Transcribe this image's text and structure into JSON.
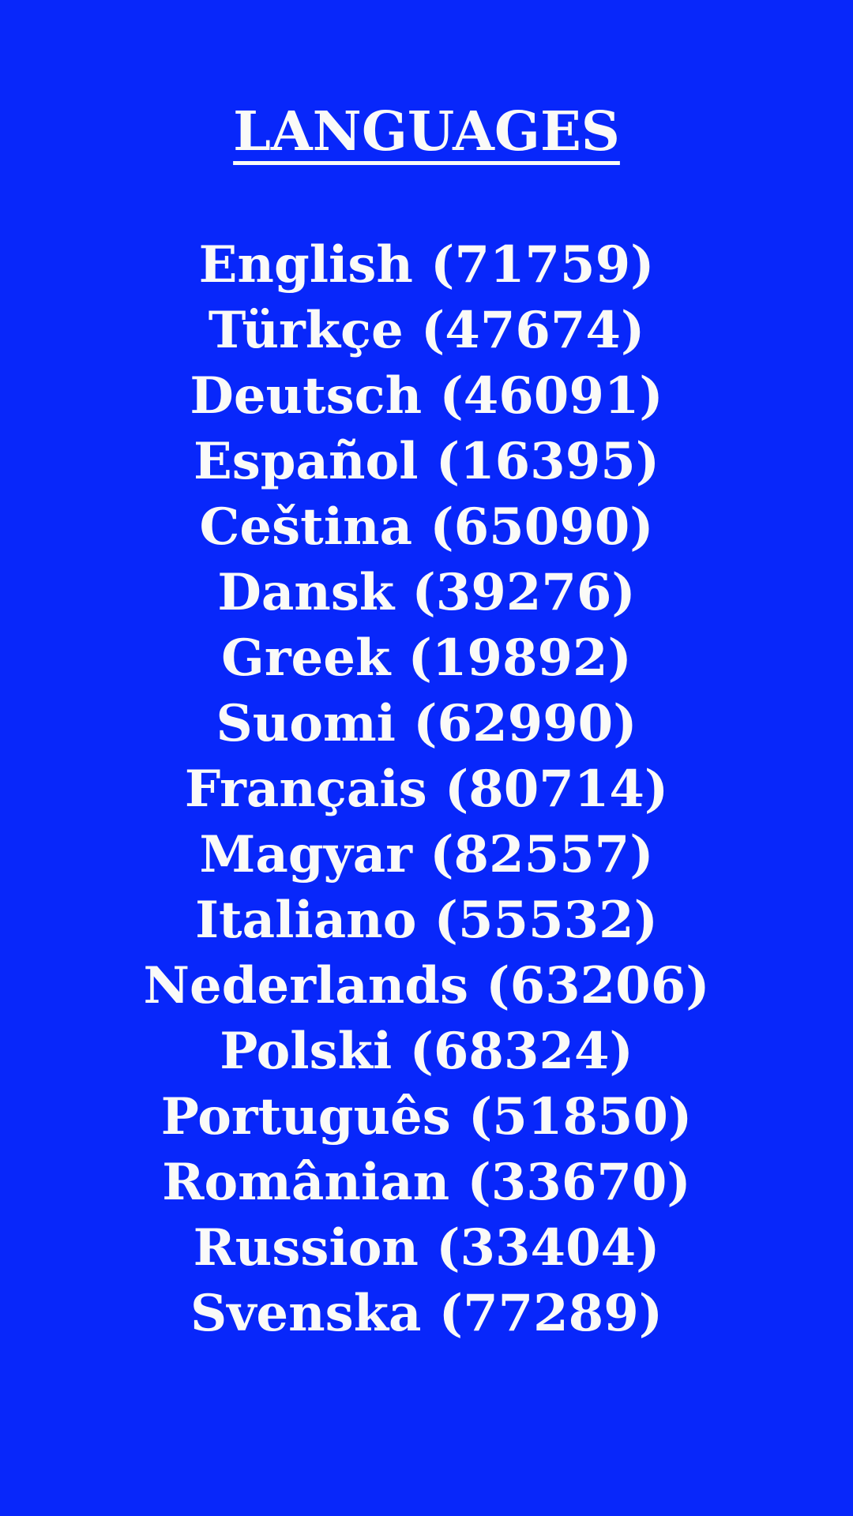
{
  "page": {
    "background_color": "#0827fa",
    "text_color": "#fafaf8"
  },
  "header": {
    "title": "LANGUAGES"
  },
  "languages": {
    "items": [
      {
        "name": "English",
        "count": "71759",
        "label": "English (71759)"
      },
      {
        "name": "Türkçe",
        "count": "47674",
        "label": "Türkçe (47674)"
      },
      {
        "name": "Deutsch",
        "count": "46091",
        "label": "Deutsch (46091)"
      },
      {
        "name": "Español",
        "count": "16395",
        "label": "Español (16395)"
      },
      {
        "name": "Ceština",
        "count": "65090",
        "label": "Ceština (65090)"
      },
      {
        "name": "Dansk",
        "count": "39276",
        "label": "Dansk (39276)"
      },
      {
        "name": "Greek",
        "count": "19892",
        "label": "Greek (19892)"
      },
      {
        "name": "Suomi",
        "count": "62990",
        "label": "Suomi (62990)"
      },
      {
        "name": "Français",
        "count": "80714",
        "label": "Français (80714)"
      },
      {
        "name": "Magyar",
        "count": "82557",
        "label": "Magyar (82557)"
      },
      {
        "name": "Italiano",
        "count": "55532",
        "label": "Italiano (55532)"
      },
      {
        "name": "Nederlands",
        "count": "63206",
        "label": "Nederlands (63206)"
      },
      {
        "name": "Polski",
        "count": "68324",
        "label": "Polski (68324)"
      },
      {
        "name": "Português",
        "count": "51850",
        "label": "Português (51850)"
      },
      {
        "name": "Românian",
        "count": "33670",
        "label": "Românian (33670)"
      },
      {
        "name": "Russion",
        "count": "33404",
        "label": "Russion (33404)"
      },
      {
        "name": "Svenska",
        "count": "77289",
        "label": "Svenska (77289)"
      }
    ]
  }
}
